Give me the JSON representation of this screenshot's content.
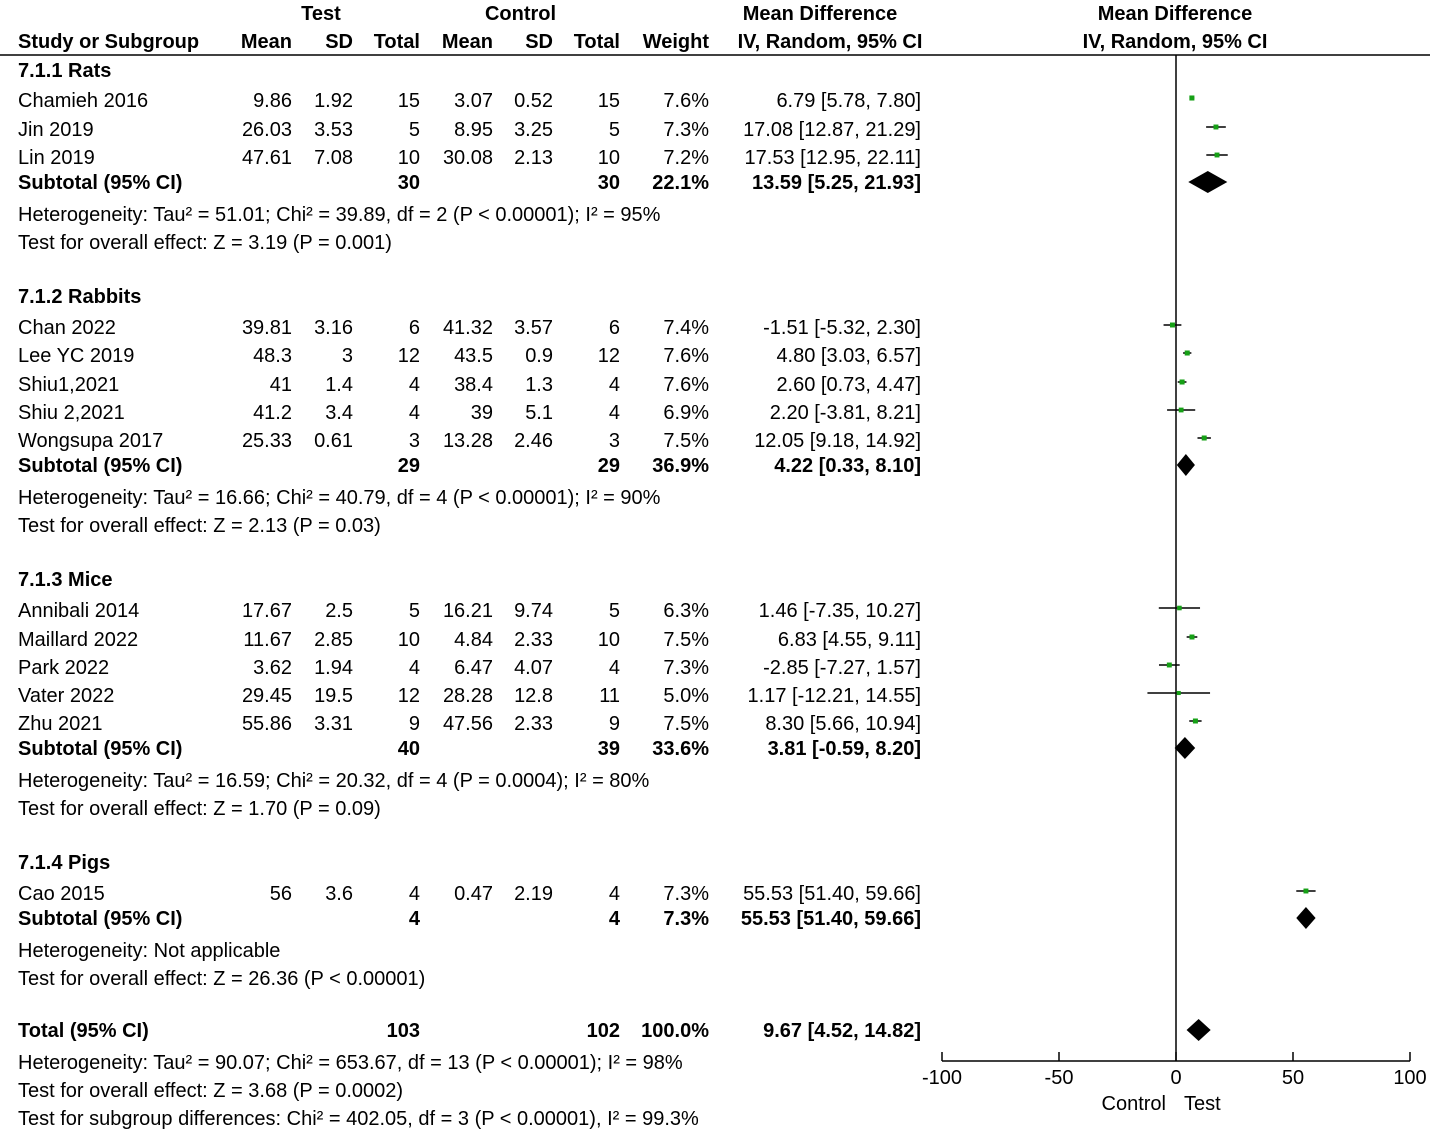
{
  "header": {
    "group_test": "Test",
    "group_control": "Control",
    "md_title": "Mean Difference",
    "md_method": "IV, Random, 95% CI",
    "plot_title": "Mean Difference",
    "plot_method": "IV, Random, 95% CI",
    "cols": [
      "Study or Subgroup",
      "Mean",
      "SD",
      "Total",
      "Mean",
      "SD",
      "Total",
      "Weight"
    ]
  },
  "subgroups": [
    {
      "title": "7.1.1 Rats",
      "studies": [
        {
          "name": "Chamieh 2016",
          "cols": [
            "9.86",
            "1.92",
            "15",
            "3.07",
            "0.52",
            "15",
            "7.6%"
          ],
          "ci": "6.79 [5.78, 7.80]"
        },
        {
          "name": "Jin 2019",
          "cols": [
            "26.03",
            "3.53",
            "5",
            "8.95",
            "3.25",
            "5",
            "7.3%"
          ],
          "ci": "17.08 [12.87, 21.29]"
        },
        {
          "name": "Lin 2019",
          "cols": [
            "47.61",
            "7.08",
            "10",
            "30.08",
            "2.13",
            "10",
            "7.2%"
          ],
          "ci": "17.53 [12.95, 22.11]"
        }
      ],
      "subtotal": {
        "label": "Subtotal (95% CI)",
        "test_total": "30",
        "control_total": "30",
        "weight": "22.1%",
        "ci": "13.59 [5.25, 21.93]"
      },
      "heterogeneity": "Heterogeneity: Tau² = 51.01; Chi² = 39.89, df = 2 (P < 0.00001); I² = 95%",
      "overall": "Test for overall effect: Z = 3.19 (P = 0.001)"
    },
    {
      "title": "7.1.2 Rabbits",
      "studies": [
        {
          "name": "Chan 2022",
          "cols": [
            "39.81",
            "3.16",
            "6",
            "41.32",
            "3.57",
            "6",
            "7.4%"
          ],
          "ci": "-1.51 [-5.32, 2.30]"
        },
        {
          "name": "Lee YC 2019",
          "cols": [
            "48.3",
            "3",
            "12",
            "43.5",
            "0.9",
            "12",
            "7.6%"
          ],
          "ci": "4.80 [3.03, 6.57]"
        },
        {
          "name": "Shiu1,2021",
          "cols": [
            "41",
            "1.4",
            "4",
            "38.4",
            "1.3",
            "4",
            "7.6%"
          ],
          "ci": "2.60 [0.73, 4.47]"
        },
        {
          "name": "Shiu 2,2021",
          "cols": [
            "41.2",
            "3.4",
            "4",
            "39",
            "5.1",
            "4",
            "6.9%"
          ],
          "ci": "2.20 [-3.81, 8.21]"
        },
        {
          "name": "Wongsupa 2017",
          "cols": [
            "25.33",
            "0.61",
            "3",
            "13.28",
            "2.46",
            "3",
            "7.5%"
          ],
          "ci": "12.05 [9.18, 14.92]"
        }
      ],
      "subtotal": {
        "label": "Subtotal (95% CI)",
        "test_total": "29",
        "control_total": "29",
        "weight": "36.9%",
        "ci": "4.22 [0.33, 8.10]"
      },
      "heterogeneity": "Heterogeneity: Tau² = 16.66; Chi² = 40.79, df = 4 (P < 0.00001); I² = 90%",
      "overall": "Test for overall effect: Z = 2.13 (P = 0.03)"
    },
    {
      "title": "7.1.3 Mice",
      "studies": [
        {
          "name": "Annibali 2014",
          "cols": [
            "17.67",
            "2.5",
            "5",
            "16.21",
            "9.74",
            "5",
            "6.3%"
          ],
          "ci": "1.46 [-7.35, 10.27]"
        },
        {
          "name": "Maillard 2022",
          "cols": [
            "11.67",
            "2.85",
            "10",
            "4.84",
            "2.33",
            "10",
            "7.5%"
          ],
          "ci": "6.83 [4.55, 9.11]"
        },
        {
          "name": "Park 2022",
          "cols": [
            "3.62",
            "1.94",
            "4",
            "6.47",
            "4.07",
            "4",
            "7.3%"
          ],
          "ci": "-2.85 [-7.27, 1.57]"
        },
        {
          "name": "Vater 2022",
          "cols": [
            "29.45",
            "19.5",
            "12",
            "28.28",
            "12.8",
            "11",
            "5.0%"
          ],
          "ci": "1.17 [-12.21, 14.55]"
        },
        {
          "name": "Zhu 2021",
          "cols": [
            "55.86",
            "3.31",
            "9",
            "47.56",
            "2.33",
            "9",
            "7.5%"
          ],
          "ci": "8.30 [5.66, 10.94]"
        }
      ],
      "subtotal": {
        "label": "Subtotal (95% CI)",
        "test_total": "40",
        "control_total": "39",
        "weight": "33.6%",
        "ci": "3.81 [-0.59, 8.20]"
      },
      "heterogeneity": "Heterogeneity: Tau² = 16.59; Chi² = 20.32, df = 4 (P = 0.0004); I² = 80%",
      "overall": "Test for overall effect: Z = 1.70 (P = 0.09)"
    },
    {
      "title": "7.1.4 Pigs",
      "studies": [
        {
          "name": "Cao 2015",
          "cols": [
            "56",
            "3.6",
            "4",
            "0.47",
            "2.19",
            "4",
            "7.3%"
          ],
          "ci": "55.53 [51.40, 59.66]"
        }
      ],
      "subtotal": {
        "label": "Subtotal (95% CI)",
        "test_total": "4",
        "control_total": "4",
        "weight": "7.3%",
        "ci": "55.53 [51.40, 59.66]"
      },
      "heterogeneity": "Heterogeneity: Not applicable",
      "overall": "Test for overall effect: Z = 26.36 (P < 0.00001)"
    }
  ],
  "total": {
    "label": "Total (95% CI)",
    "test_total": "103",
    "control_total": "102",
    "weight": "100.0%",
    "ci": "9.67 [4.52, 14.82]",
    "heterogeneity": "Heterogeneity: Tau² = 90.07; Chi² = 653.67, df = 13 (P < 0.00001); I² = 98%",
    "overall": "Test for overall effect: Z = 3.68 (P = 0.0002)",
    "subgroup_diff": "Test for subgroup differences: Chi² = 402.05, df = 3 (P < 0.00001), I² = 99.3%"
  },
  "chart_data": {
    "type": "forest",
    "title": "Mean Difference",
    "subtitle": "IV, Random, 95% CI",
    "xlim": [
      -100,
      100
    ],
    "ticks": [
      -100,
      -50,
      0,
      50,
      100
    ],
    "tick_labels": [
      "-100",
      "-50",
      "0",
      "50",
      "100"
    ],
    "favours_left": "Control",
    "favours_right": "Test",
    "study_color": "#16a016",
    "studies": [
      {
        "name": "Chamieh 2016",
        "md": 6.79,
        "lo": 5.78,
        "hi": 7.8,
        "weight": 7.6
      },
      {
        "name": "Jin 2019",
        "md": 17.08,
        "lo": 12.87,
        "hi": 21.29,
        "weight": 7.3
      },
      {
        "name": "Lin 2019",
        "md": 17.53,
        "lo": 12.95,
        "hi": 22.11,
        "weight": 7.2
      },
      {
        "name": "Chan 2022",
        "md": -1.51,
        "lo": -5.32,
        "hi": 2.3,
        "weight": 7.4
      },
      {
        "name": "Lee YC 2019",
        "md": 4.8,
        "lo": 3.03,
        "hi": 6.57,
        "weight": 7.6
      },
      {
        "name": "Shiu1,2021",
        "md": 2.6,
        "lo": 0.73,
        "hi": 4.47,
        "weight": 7.6
      },
      {
        "name": "Shiu 2,2021",
        "md": 2.2,
        "lo": -3.81,
        "hi": 8.21,
        "weight": 6.9
      },
      {
        "name": "Wongsupa 2017",
        "md": 12.05,
        "lo": 9.18,
        "hi": 14.92,
        "weight": 7.5
      },
      {
        "name": "Annibali 2014",
        "md": 1.46,
        "lo": -7.35,
        "hi": 10.27,
        "weight": 6.3
      },
      {
        "name": "Maillard 2022",
        "md": 6.83,
        "lo": 4.55,
        "hi": 9.11,
        "weight": 7.5
      },
      {
        "name": "Park 2022",
        "md": -2.85,
        "lo": -7.27,
        "hi": 1.57,
        "weight": 7.3
      },
      {
        "name": "Vater 2022",
        "md": 1.17,
        "lo": -12.21,
        "hi": 14.55,
        "weight": 5.0
      },
      {
        "name": "Zhu 2021",
        "md": 8.3,
        "lo": 5.66,
        "hi": 10.94,
        "weight": 7.5
      },
      {
        "name": "Cao 2015",
        "md": 55.53,
        "lo": 51.4,
        "hi": 59.66,
        "weight": 7.3
      }
    ],
    "summaries": [
      {
        "name": "Subtotal Rats",
        "md": 13.59,
        "lo": 5.25,
        "hi": 21.93
      },
      {
        "name": "Subtotal Rabbits",
        "md": 4.22,
        "lo": 0.33,
        "hi": 8.1
      },
      {
        "name": "Subtotal Mice",
        "md": 3.81,
        "lo": -0.59,
        "hi": 8.2
      },
      {
        "name": "Subtotal Pigs",
        "md": 55.53,
        "lo": 51.4,
        "hi": 59.66
      },
      {
        "name": "Total",
        "md": 9.67,
        "lo": 4.52,
        "hi": 14.82
      }
    ]
  }
}
